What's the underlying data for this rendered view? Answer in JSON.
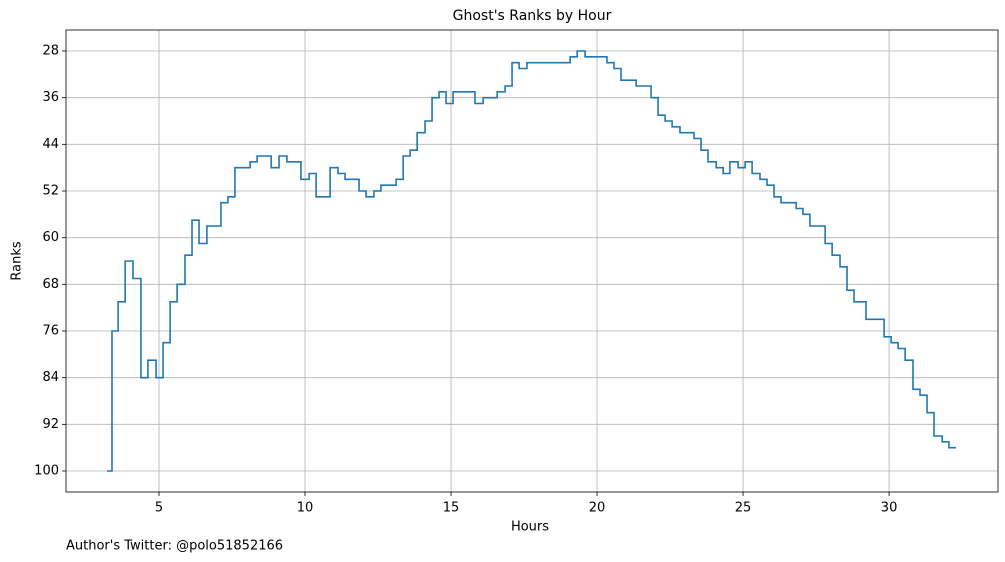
{
  "chart_data": {
    "type": "step",
    "title": "Ghost's Ranks by Hour",
    "xlabel": "Hours",
    "ylabel": "Ranks",
    "footnote": "Author's Twitter: @polo51852166",
    "step_where": "post",
    "color": "#1f77b4",
    "grid": true,
    "xlim": [
      1.815,
      33.73
    ],
    "ylim": [
      103.6,
      24.4
    ],
    "xticks": [
      5,
      10,
      15,
      20,
      25,
      30
    ],
    "yticks": [
      28,
      36,
      44,
      52,
      60,
      68,
      76,
      84,
      92,
      100
    ],
    "x": [
      3.22,
      3.39,
      3.6,
      3.84,
      4.11,
      4.38,
      4.62,
      4.9,
      5.14,
      5.38,
      5.62,
      5.89,
      6.13,
      6.37,
      6.64,
      7.12,
      7.36,
      7.6,
      8.12,
      8.36,
      8.84,
      9.11,
      9.38,
      9.86,
      10.14,
      10.38,
      10.86,
      11.13,
      11.37,
      11.85,
      12.09,
      12.36,
      12.6,
      13.12,
      13.36,
      13.6,
      13.84,
      14.11,
      14.35,
      14.59,
      14.83,
      15.07,
      15.82,
      16.1,
      16.58,
      16.85,
      17.09,
      17.33,
      17.6,
      19.08,
      19.32,
      19.59,
      20.34,
      20.58,
      20.82,
      21.34,
      21.85,
      22.09,
      22.33,
      22.57,
      22.84,
      23.32,
      23.56,
      23.8,
      24.08,
      24.32,
      24.55,
      24.83,
      25.07,
      25.31,
      25.58,
      25.82,
      26.06,
      26.3,
      26.82,
      27.05,
      27.29,
      27.81,
      28.05,
      28.32,
      28.56,
      28.8,
      29.21,
      29.83,
      30.07,
      30.31,
      30.55,
      30.82,
      31.06,
      31.3,
      31.54,
      31.82,
      32.05,
      32.29
    ],
    "values": [
      100,
      76,
      71,
      64,
      67,
      84,
      81,
      84,
      78,
      71,
      68,
      63,
      57,
      61,
      58,
      54,
      53,
      48,
      47,
      46,
      48,
      46,
      47,
      50,
      49,
      53,
      48,
      49,
      50,
      52,
      53,
      52,
      51,
      50,
      46,
      45,
      42,
      40,
      36,
      35,
      37,
      35,
      37,
      36,
      35,
      34,
      30,
      31,
      30,
      29,
      28,
      29,
      30,
      31,
      33,
      34,
      36,
      39,
      40,
      41,
      42,
      43,
      45,
      47,
      48,
      49,
      47,
      48,
      47,
      49,
      50,
      51,
      53,
      54,
      55,
      56,
      58,
      61,
      63,
      65,
      69,
      71,
      74,
      77,
      78,
      79,
      81,
      86,
      87,
      90,
      94,
      95,
      96,
      96
    ]
  }
}
